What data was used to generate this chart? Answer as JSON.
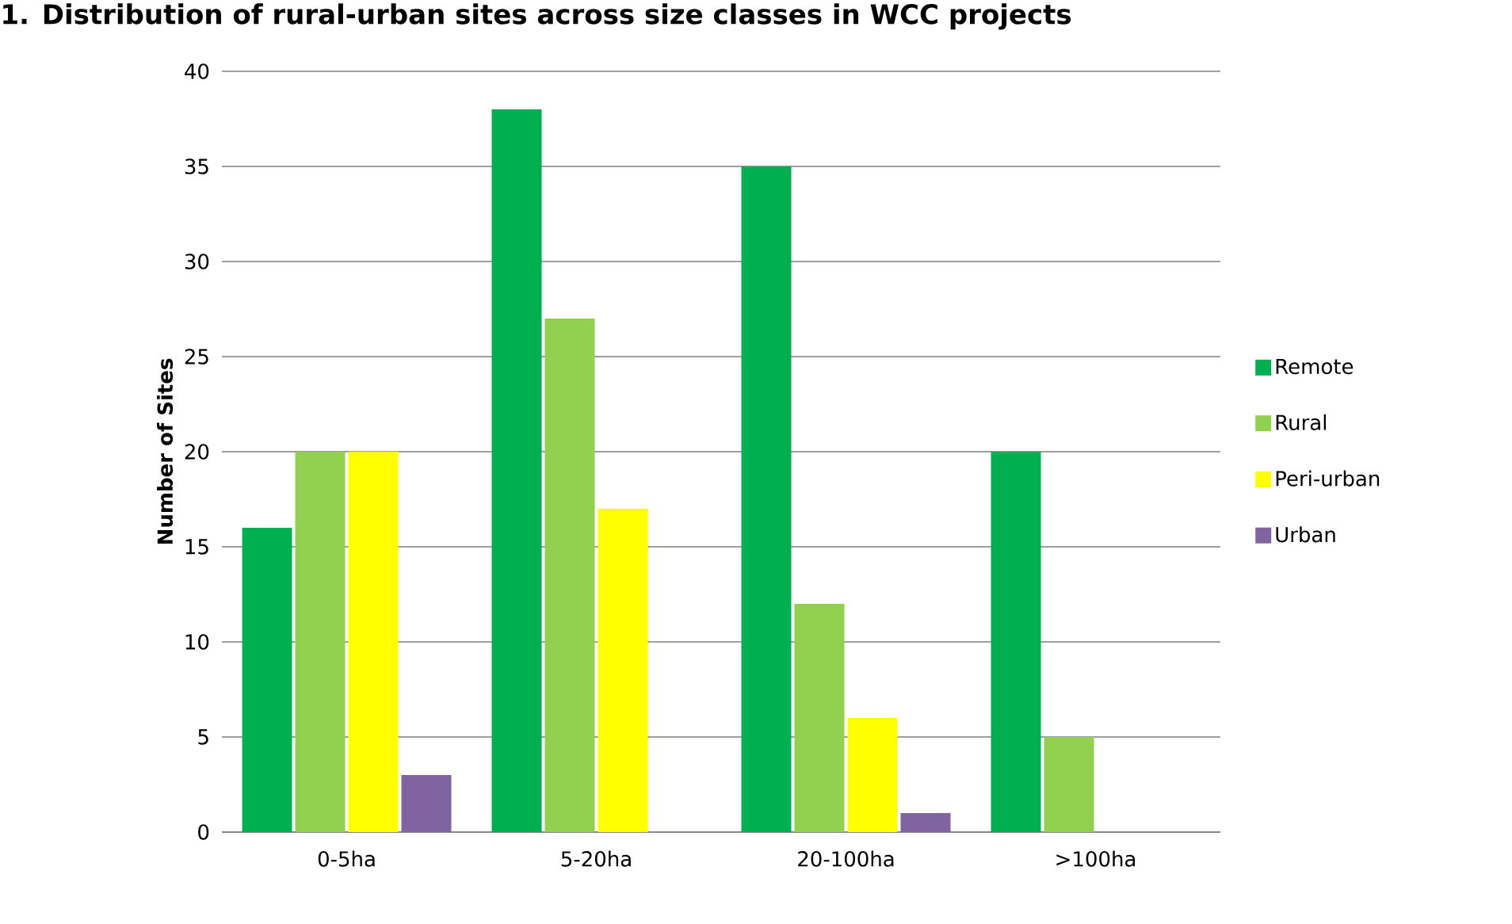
{
  "chart_data": {
    "type": "bar",
    "title": "1. Distribution of rural-urban sites across size classes in WCC projects",
    "ylabel": "Number of Sites",
    "categories": [
      "0-5ha",
      "5-20ha",
      "20-100ha",
      ">100ha"
    ],
    "series": [
      {
        "name": "Remote",
        "color": "#00b050",
        "values": [
          16,
          38,
          35,
          20
        ]
      },
      {
        "name": "Rural",
        "color": "#92d050",
        "values": [
          20,
          27,
          12,
          5
        ]
      },
      {
        "name": "Peri-urban",
        "color": "#ffff00",
        "values": [
          20,
          17,
          6,
          0
        ]
      },
      {
        "name": "Urban",
        "color": "#8064a2",
        "values": [
          3,
          0,
          1,
          0
        ]
      }
    ],
    "ylim": [
      0,
      40
    ],
    "yticks": [
      0,
      5,
      10,
      15,
      20,
      25,
      30,
      35,
      40
    ],
    "grid": "y",
    "legend": "right"
  }
}
